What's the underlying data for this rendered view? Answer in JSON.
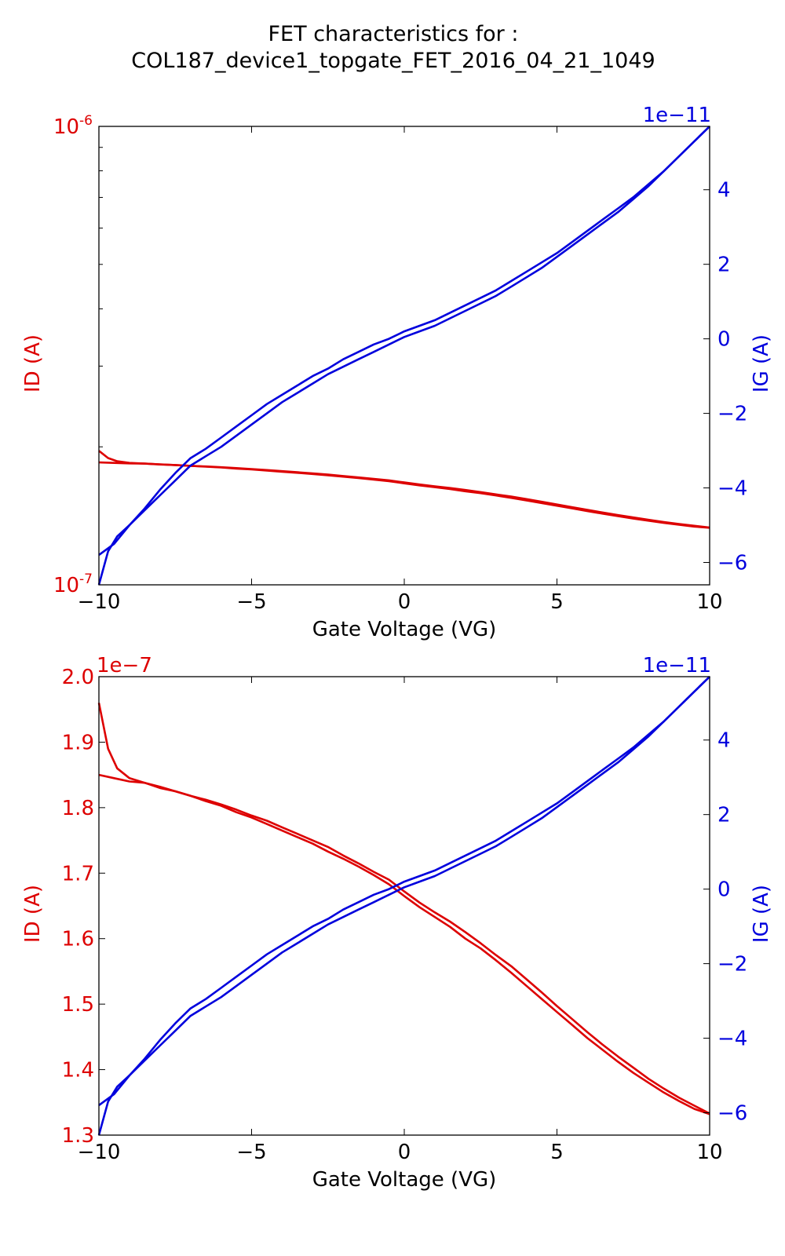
{
  "figure": {
    "title_line1": "FET characteristics for :",
    "title_line2": "COL187_device1_topgate_FET_2016_04_21_1049"
  },
  "colors": {
    "id": "#dd0000",
    "ig": "#0000dd",
    "axes": "#000000"
  },
  "chart_data": [
    {
      "type": "line",
      "xlabel": "Gate Voltage (VG)",
      "ylabel": "ID (A)",
      "y2label": "IG (A)",
      "xlim": [
        -10,
        10
      ],
      "xticks": [
        -10,
        -5,
        0,
        5,
        10
      ],
      "xtick_labels": [
        "−10",
        "−5",
        "0",
        "5",
        "10"
      ],
      "yscale": "log",
      "ylim": [
        1e-07,
        1e-06
      ],
      "ytick_base": "10",
      "ytick_labels": [
        {
          "value": 1e-07,
          "exp": "-7"
        },
        {
          "value": 1e-06,
          "exp": "-6"
        }
      ],
      "y2lim": [
        -6.6,
        5.7
      ],
      "y2ticks": [
        -6,
        -4,
        -2,
        0,
        2,
        4
      ],
      "y2tick_labels": [
        "−6",
        "−4",
        "−2",
        "0",
        "2",
        "4"
      ],
      "y2_offset": "1e−11",
      "grid": false,
      "series": [
        {
          "axis": "left",
          "x": [
            -10,
            -9.7,
            -9.4,
            -9,
            -8.5,
            -8,
            -7.5,
            -7,
            -6.5,
            -6,
            -5.5,
            -5,
            -4.5,
            -4,
            -3.5,
            -3,
            -2.5,
            -2,
            -1.5,
            -1,
            -0.5,
            0,
            0.5,
            1,
            1.5,
            2,
            2.5,
            3,
            3.5,
            4,
            4.5,
            5,
            5.5,
            6,
            6.5,
            7,
            7.5,
            8,
            8.5,
            9,
            9.5,
            10
          ],
          "y": [
            1.96e-07,
            1.89e-07,
            1.86e-07,
            1.845e-07,
            1.838e-07,
            1.83e-07,
            1.825e-07,
            1.818e-07,
            1.81e-07,
            1.803e-07,
            1.793e-07,
            1.785e-07,
            1.775e-07,
            1.765e-07,
            1.755e-07,
            1.745e-07,
            1.733e-07,
            1.722e-07,
            1.71e-07,
            1.697e-07,
            1.683e-07,
            1.665e-07,
            1.648e-07,
            1.633e-07,
            1.618e-07,
            1.6e-07,
            1.585e-07,
            1.567e-07,
            1.548e-07,
            1.528e-07,
            1.508e-07,
            1.488e-07,
            1.468e-07,
            1.448e-07,
            1.43e-07,
            1.412e-07,
            1.395e-07,
            1.38e-07,
            1.365e-07,
            1.352e-07,
            1.34e-07,
            1.332e-07
          ]
        },
        {
          "axis": "left",
          "x": [
            -10,
            -9.5,
            -9,
            -8.5,
            -8,
            -7.5,
            -7,
            -6.5,
            -6,
            -5.5,
            -5,
            -4.5,
            -4,
            -3.5,
            -3,
            -2.5,
            -2,
            -1.5,
            -1,
            -0.5,
            0,
            0.5,
            1,
            1.5,
            2,
            2.5,
            3,
            3.5,
            4,
            4.5,
            5,
            5.5,
            6,
            6.5,
            7,
            7.5,
            8,
            8.5,
            9,
            9.5,
            10
          ],
          "y": [
            1.85e-07,
            1.845e-07,
            1.84e-07,
            1.838e-07,
            1.832e-07,
            1.825e-07,
            1.818e-07,
            1.812e-07,
            1.805e-07,
            1.797e-07,
            1.788e-07,
            1.78e-07,
            1.77e-07,
            1.76e-07,
            1.75e-07,
            1.74e-07,
            1.727e-07,
            1.715e-07,
            1.702e-07,
            1.69e-07,
            1.672e-07,
            1.655e-07,
            1.64e-07,
            1.626e-07,
            1.61e-07,
            1.593e-07,
            1.575e-07,
            1.558e-07,
            1.538e-07,
            1.518e-07,
            1.497e-07,
            1.477e-07,
            1.457e-07,
            1.438e-07,
            1.42e-07,
            1.403e-07,
            1.386e-07,
            1.371e-07,
            1.357e-07,
            1.345e-07,
            1.333e-07
          ]
        },
        {
          "axis": "right",
          "x": [
            -10,
            -9.7,
            -9.4,
            -9,
            -8.5,
            -8,
            -7.5,
            -7,
            -6.5,
            -6,
            -5.5,
            -5,
            -4.5,
            -4,
            -3.5,
            -3,
            -2.5,
            -2,
            -1.5,
            -1,
            -0.5,
            0,
            0.5,
            1,
            1.5,
            2,
            2.5,
            3,
            3.5,
            4,
            4.5,
            5,
            5.5,
            6,
            6.5,
            7,
            7.5,
            8,
            8.5,
            9,
            9.5,
            10
          ],
          "y": [
            -6.6,
            -5.7,
            -5.3,
            -5.0,
            -4.6,
            -4.2,
            -3.8,
            -3.4,
            -3.15,
            -2.9,
            -2.6,
            -2.3,
            -2.0,
            -1.7,
            -1.45,
            -1.2,
            -0.95,
            -0.75,
            -0.55,
            -0.35,
            -0.15,
            0.05,
            0.2,
            0.35,
            0.55,
            0.75,
            0.95,
            1.15,
            1.4,
            1.65,
            1.9,
            2.2,
            2.5,
            2.8,
            3.1,
            3.4,
            3.75,
            4.1,
            4.5,
            4.9,
            5.3,
            5.7
          ]
        },
        {
          "axis": "right",
          "x": [
            -10,
            -9.5,
            -9,
            -8.5,
            -8,
            -7.5,
            -7,
            -6.5,
            -6,
            -5.5,
            -5,
            -4.5,
            -4,
            -3.5,
            -3,
            -2.5,
            -2,
            -1.5,
            -1,
            -0.5,
            0,
            0.5,
            1,
            1.5,
            2,
            2.5,
            3,
            3.5,
            4,
            4.5,
            5,
            5.5,
            6,
            6.5,
            7,
            7.5,
            8,
            8.5,
            9,
            9.5,
            10
          ],
          "y": [
            -5.8,
            -5.5,
            -5.0,
            -4.55,
            -4.05,
            -3.6,
            -3.2,
            -2.95,
            -2.65,
            -2.35,
            -2.05,
            -1.75,
            -1.5,
            -1.25,
            -1.0,
            -0.8,
            -0.55,
            -0.35,
            -0.15,
            0.0,
            0.2,
            0.35,
            0.5,
            0.7,
            0.9,
            1.1,
            1.3,
            1.55,
            1.8,
            2.05,
            2.3,
            2.6,
            2.9,
            3.2,
            3.5,
            3.8,
            4.15,
            4.5,
            4.9,
            5.3,
            5.7
          ]
        }
      ]
    },
    {
      "type": "line",
      "xlabel": "Gate Voltage (VG)",
      "ylabel": "ID (A)",
      "y2label": "IG (A)",
      "xlim": [
        -10,
        10
      ],
      "xticks": [
        -10,
        -5,
        0,
        5,
        10
      ],
      "xtick_labels": [
        "−10",
        "−5",
        "0",
        "5",
        "10"
      ],
      "yscale": "linear",
      "ylim": [
        1.3,
        2.0
      ],
      "yticks": [
        1.3,
        1.4,
        1.5,
        1.6,
        1.7,
        1.8,
        1.9,
        2.0
      ],
      "ytick_labels": [
        "1.3",
        "1.4",
        "1.5",
        "1.6",
        "1.7",
        "1.8",
        "1.9",
        "2.0"
      ],
      "y_offset": "1e−7",
      "y2lim": [
        -6.6,
        5.7
      ],
      "y2ticks": [
        -6,
        -4,
        -2,
        0,
        2,
        4
      ],
      "y2tick_labels": [
        "−6",
        "−4",
        "−2",
        "0",
        "2",
        "4"
      ],
      "y2_offset": "1e−11",
      "grid": false,
      "series": [
        {
          "axis": "left",
          "x": [
            -10,
            -9.7,
            -9.4,
            -9,
            -8.5,
            -8,
            -7.5,
            -7,
            -6.5,
            -6,
            -5.5,
            -5,
            -4.5,
            -4,
            -3.5,
            -3,
            -2.5,
            -2,
            -1.5,
            -1,
            -0.5,
            0,
            0.5,
            1,
            1.5,
            2,
            2.5,
            3,
            3.5,
            4,
            4.5,
            5,
            5.5,
            6,
            6.5,
            7,
            7.5,
            8,
            8.5,
            9,
            9.5,
            10
          ],
          "y": [
            1.96,
            1.89,
            1.86,
            1.845,
            1.838,
            1.83,
            1.825,
            1.818,
            1.81,
            1.803,
            1.793,
            1.785,
            1.775,
            1.765,
            1.755,
            1.745,
            1.733,
            1.722,
            1.71,
            1.697,
            1.683,
            1.665,
            1.648,
            1.633,
            1.618,
            1.6,
            1.585,
            1.567,
            1.548,
            1.528,
            1.508,
            1.488,
            1.468,
            1.448,
            1.43,
            1.412,
            1.395,
            1.38,
            1.365,
            1.352,
            1.34,
            1.332
          ]
        },
        {
          "axis": "left",
          "x": [
            -10,
            -9.5,
            -9,
            -8.5,
            -8,
            -7.5,
            -7,
            -6.5,
            -6,
            -5.5,
            -5,
            -4.5,
            -4,
            -3.5,
            -3,
            -2.5,
            -2,
            -1.5,
            -1,
            -0.5,
            0,
            0.5,
            1,
            1.5,
            2,
            2.5,
            3,
            3.5,
            4,
            4.5,
            5,
            5.5,
            6,
            6.5,
            7,
            7.5,
            8,
            8.5,
            9,
            9.5,
            10
          ],
          "y": [
            1.85,
            1.845,
            1.84,
            1.838,
            1.832,
            1.825,
            1.818,
            1.812,
            1.805,
            1.797,
            1.788,
            1.78,
            1.77,
            1.76,
            1.75,
            1.74,
            1.727,
            1.715,
            1.702,
            1.69,
            1.672,
            1.655,
            1.64,
            1.626,
            1.61,
            1.593,
            1.575,
            1.558,
            1.538,
            1.518,
            1.497,
            1.477,
            1.457,
            1.438,
            1.42,
            1.403,
            1.386,
            1.371,
            1.357,
            1.345,
            1.333
          ]
        },
        {
          "axis": "right",
          "x": [
            -10,
            -9.7,
            -9.4,
            -9,
            -8.5,
            -8,
            -7.5,
            -7,
            -6.5,
            -6,
            -5.5,
            -5,
            -4.5,
            -4,
            -3.5,
            -3,
            -2.5,
            -2,
            -1.5,
            -1,
            -0.5,
            0,
            0.5,
            1,
            1.5,
            2,
            2.5,
            3,
            3.5,
            4,
            4.5,
            5,
            5.5,
            6,
            6.5,
            7,
            7.5,
            8,
            8.5,
            9,
            9.5,
            10
          ],
          "y": [
            -6.6,
            -5.7,
            -5.3,
            -5.0,
            -4.6,
            -4.2,
            -3.8,
            -3.4,
            -3.15,
            -2.9,
            -2.6,
            -2.3,
            -2.0,
            -1.7,
            -1.45,
            -1.2,
            -0.95,
            -0.75,
            -0.55,
            -0.35,
            -0.15,
            0.05,
            0.2,
            0.35,
            0.55,
            0.75,
            0.95,
            1.15,
            1.4,
            1.65,
            1.9,
            2.2,
            2.5,
            2.8,
            3.1,
            3.4,
            3.75,
            4.1,
            4.5,
            4.9,
            5.3,
            5.7
          ]
        },
        {
          "axis": "right",
          "x": [
            -10,
            -9.5,
            -9,
            -8.5,
            -8,
            -7.5,
            -7,
            -6.5,
            -6,
            -5.5,
            -5,
            -4.5,
            -4,
            -3.5,
            -3,
            -2.5,
            -2,
            -1.5,
            -1,
            -0.5,
            0,
            0.5,
            1,
            1.5,
            2,
            2.5,
            3,
            3.5,
            4,
            4.5,
            5,
            5.5,
            6,
            6.5,
            7,
            7.5,
            8,
            8.5,
            9,
            9.5,
            10
          ],
          "y": [
            -5.8,
            -5.5,
            -5.0,
            -4.55,
            -4.05,
            -3.6,
            -3.2,
            -2.95,
            -2.65,
            -2.35,
            -2.05,
            -1.75,
            -1.5,
            -1.25,
            -1.0,
            -0.8,
            -0.55,
            -0.35,
            -0.15,
            0.0,
            0.2,
            0.35,
            0.5,
            0.7,
            0.9,
            1.1,
            1.3,
            1.55,
            1.8,
            2.05,
            2.3,
            2.6,
            2.9,
            3.2,
            3.5,
            3.8,
            4.15,
            4.5,
            4.9,
            5.3,
            5.7
          ]
        }
      ]
    }
  ]
}
